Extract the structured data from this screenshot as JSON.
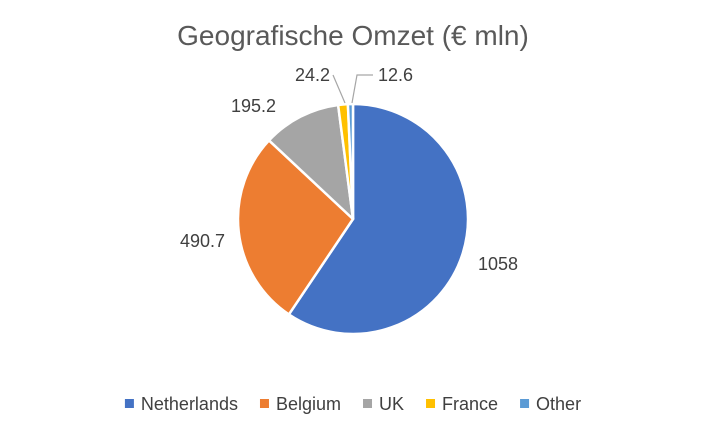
{
  "chart_data": {
    "type": "pie",
    "title": "Geografische Omzet (€ mln)",
    "categories": [
      "Netherlands",
      "Belgium",
      "UK",
      "France",
      "Other"
    ],
    "values": [
      1058,
      490.7,
      195.2,
      24.2,
      12.6
    ],
    "data_labels": [
      "1058",
      "490.7",
      "195.2",
      "24.2",
      "12.6"
    ],
    "colors": [
      "#4472C4",
      "#ED7D31",
      "#A5A5A5",
      "#FFC000",
      "#5B9BD5"
    ],
    "legend_position": "bottom",
    "start_angle_deg": 0,
    "direction": "clockwise"
  }
}
